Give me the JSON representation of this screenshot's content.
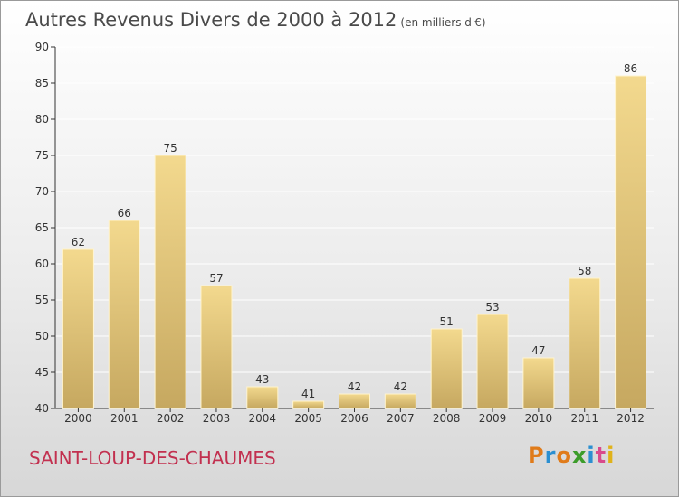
{
  "title": "Autres Revenus Divers de 2000 à 2012",
  "subtitle": "(en milliers d'€)",
  "location": "SAINT-LOUP-DES-CHAUMES",
  "logo": {
    "letters": [
      "P",
      "r",
      "o",
      "x",
      "i",
      "t",
      "i"
    ],
    "colors": [
      "#e07b1a",
      "#2b8fd1",
      "#e07b1a",
      "#3c9c2a",
      "#2b8fd1",
      "#d94a8c",
      "#e0b21a"
    ]
  },
  "colors": {
    "bar_light": "#f3d98e",
    "bar_dark": "#c6a860",
    "axis": "#333333",
    "grid": "#ffffff"
  },
  "chart_data": {
    "type": "bar",
    "categories": [
      "2000",
      "2001",
      "2002",
      "2003",
      "2004",
      "2005",
      "2006",
      "2007",
      "2008",
      "2009",
      "2010",
      "2011",
      "2012"
    ],
    "values": [
      62,
      66,
      75,
      57,
      43,
      41,
      42,
      42,
      51,
      53,
      47,
      58,
      86
    ],
    "ylim": [
      40,
      90
    ],
    "yticks": [
      40,
      45,
      50,
      55,
      60,
      65,
      70,
      75,
      80,
      85,
      90
    ],
    "grid": true
  }
}
